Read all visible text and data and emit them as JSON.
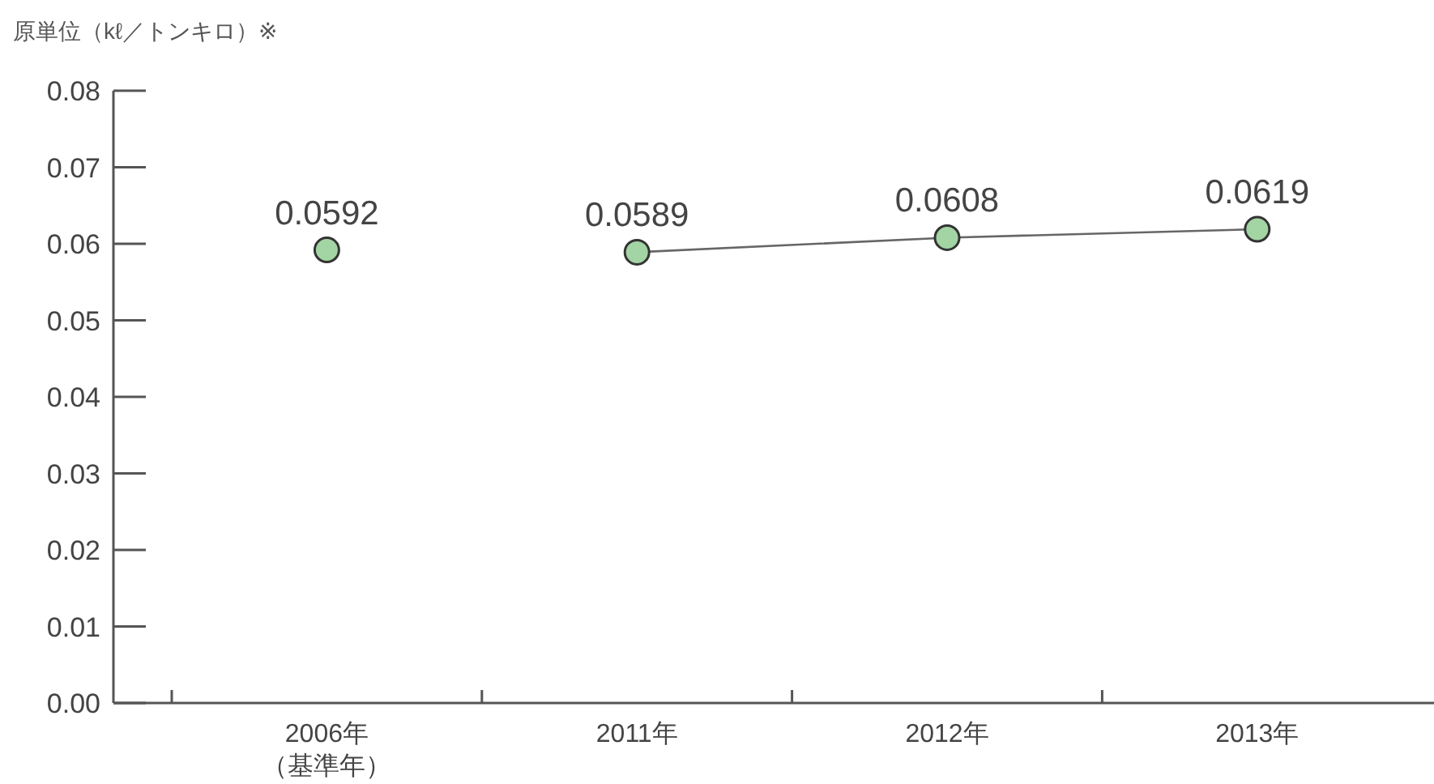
{
  "chart_data": {
    "type": "line",
    "ylabel": "原単位（kℓ／トンキロ）※",
    "categories": [
      "2006年（基準年）",
      "2011年",
      "2012年",
      "2013年"
    ],
    "series": [
      {
        "type": "scatter",
        "color": "#a3d4a3",
        "values": [
          0.0592,
          null,
          null,
          null
        ]
      },
      {
        "color": "#a3d4a3",
        "values": [
          null,
          0.0589,
          0.0608,
          0.0619
        ]
      }
    ],
    "ylim": [
      0,
      0.08
    ],
    "yticks": [
      {
        "value": 0,
        "label": "0.00"
      },
      {
        "value": 0.01,
        "label": "0.01"
      },
      {
        "value": 0.02,
        "label": "0.02"
      },
      {
        "value": 0.03,
        "label": "0.03"
      },
      {
        "value": 0.04,
        "label": "0.04"
      },
      {
        "value": 0.05,
        "label": "0.05"
      },
      {
        "value": 0.06,
        "label": "0.06"
      },
      {
        "value": 0.07,
        "label": "0.07"
      },
      {
        "value": 0.08,
        "label": "0.08"
      }
    ],
    "marker": "circle",
    "data_labels": true,
    "grid": false
  }
}
